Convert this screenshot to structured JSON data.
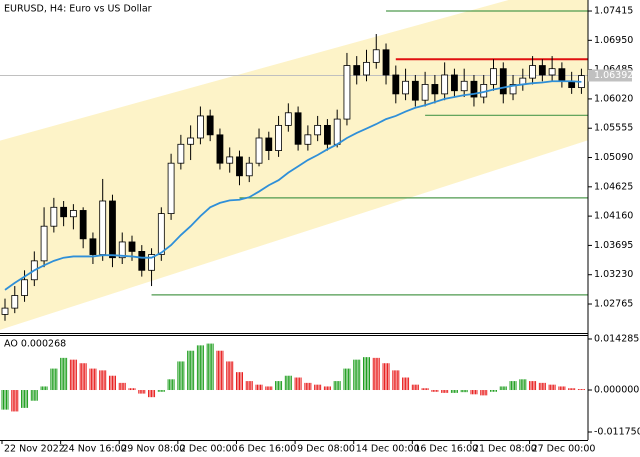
{
  "chart_data": [
    {
      "type": "candlestick",
      "title": "EURUSD, H4:  Euro vs US Dollar",
      "ohlc": [
        [
          1.026,
          1.0285,
          1.025,
          1.027
        ],
        [
          1.027,
          1.0305,
          1.0262,
          1.029
        ],
        [
          1.029,
          1.033,
          1.028,
          1.0315
        ],
        [
          1.0315,
          1.036,
          1.0305,
          1.0345
        ],
        [
          1.0345,
          1.043,
          1.0335,
          1.04
        ],
        [
          1.04,
          1.0445,
          1.039,
          1.043
        ],
        [
          1.043,
          1.044,
          1.04,
          1.0415
        ],
        [
          1.0415,
          1.0435,
          1.0395,
          1.0425
        ],
        [
          1.0425,
          1.043,
          1.0365,
          1.038
        ],
        [
          1.038,
          1.039,
          1.034,
          1.0355
        ],
        [
          1.0355,
          1.0475,
          1.0345,
          1.044
        ],
        [
          1.044,
          1.045,
          1.0335,
          1.035
        ],
        [
          1.035,
          1.039,
          1.034,
          1.0375
        ],
        [
          1.0375,
          1.0385,
          1.0345,
          1.036
        ],
        [
          1.036,
          1.037,
          1.032,
          1.033
        ],
        [
          1.033,
          1.0365,
          1.0305,
          1.0355
        ],
        [
          1.0355,
          1.043,
          1.0345,
          1.042
        ],
        [
          1.042,
          1.0515,
          1.041,
          1.05
        ],
        [
          1.05,
          1.0545,
          1.049,
          1.053
        ],
        [
          1.053,
          1.056,
          1.0505,
          1.054
        ],
        [
          1.054,
          1.059,
          1.053,
          1.0575
        ],
        [
          1.0575,
          1.0585,
          1.0535,
          1.0545
        ],
        [
          1.0545,
          1.0555,
          1.049,
          1.05
        ],
        [
          1.05,
          1.0525,
          1.0485,
          1.051
        ],
        [
          1.051,
          1.052,
          1.0465,
          1.048
        ],
        [
          1.048,
          1.051,
          1.047,
          1.05
        ],
        [
          1.05,
          1.0555,
          1.0495,
          1.054
        ],
        [
          1.054,
          1.055,
          1.0505,
          1.052
        ],
        [
          1.052,
          1.0575,
          1.051,
          1.056
        ],
        [
          1.056,
          1.0595,
          1.055,
          1.058
        ],
        [
          1.058,
          1.059,
          1.052,
          1.053
        ],
        [
          1.053,
          1.056,
          1.052,
          1.0545
        ],
        [
          1.0545,
          1.0575,
          1.0535,
          1.056
        ],
        [
          1.056,
          1.057,
          1.052,
          1.053
        ],
        [
          1.053,
          1.0585,
          1.0525,
          1.057
        ],
        [
          1.057,
          1.0675,
          1.056,
          1.0655
        ],
        [
          1.0655,
          1.067,
          1.0625,
          1.064
        ],
        [
          1.064,
          1.068,
          1.063,
          1.066
        ],
        [
          1.066,
          1.0705,
          1.065,
          1.068
        ],
        [
          1.068,
          1.069,
          1.0625,
          1.064
        ],
        [
          1.064,
          1.0655,
          1.0595,
          1.061
        ],
        [
          1.061,
          1.065,
          1.06,
          1.063
        ],
        [
          1.063,
          1.064,
          1.059,
          1.06
        ],
        [
          1.06,
          1.0645,
          1.059,
          1.0625
        ],
        [
          1.0625,
          1.064,
          1.0595,
          1.061
        ],
        [
          1.061,
          1.066,
          1.06,
          1.064
        ],
        [
          1.064,
          1.065,
          1.0605,
          1.0615
        ],
        [
          1.0615,
          1.065,
          1.0605,
          1.063
        ],
        [
          1.063,
          1.064,
          1.059,
          1.0605
        ],
        [
          1.0605,
          1.064,
          1.0595,
          1.0625
        ],
        [
          1.0625,
          1.0665,
          1.0615,
          1.065
        ],
        [
          1.065,
          1.066,
          1.0595,
          1.061
        ],
        [
          1.061,
          1.064,
          1.06,
          1.0625
        ],
        [
          1.0625,
          1.065,
          1.0615,
          1.0635
        ],
        [
          1.0635,
          1.067,
          1.0625,
          1.0655
        ],
        [
          1.0655,
          1.0665,
          1.063,
          1.064
        ],
        [
          1.064,
          1.067,
          1.063,
          1.065
        ],
        [
          1.065,
          1.066,
          1.062,
          1.063
        ],
        [
          1.063,
          1.0645,
          1.061,
          1.062
        ],
        [
          1.062,
          1.065,
          1.061,
          1.0639
        ]
      ],
      "ma": {
        "color": "#2f8fd8",
        "values": [
          1.0299,
          1.031,
          1.032,
          1.033,
          1.0338,
          1.0345,
          1.035,
          1.0352,
          1.0352,
          1.0352,
          1.0354,
          1.0354,
          1.0353,
          1.0352,
          1.035,
          1.035,
          1.0358,
          1.037,
          1.0386,
          1.04,
          1.0416,
          1.043,
          1.0437,
          1.0441,
          1.0442,
          1.0446,
          1.0455,
          1.0465,
          1.0473,
          1.0485,
          1.0495,
          1.0505,
          1.0513,
          1.0522,
          1.053,
          1.054,
          1.0548,
          1.0555,
          1.0562,
          1.057,
          1.0575,
          1.0582,
          1.0588,
          1.0592,
          1.0597,
          1.0602,
          1.0605,
          1.0608,
          1.061,
          1.0613,
          1.0617,
          1.062,
          1.0623,
          1.0625,
          1.0627,
          1.0628,
          1.063,
          1.063,
          1.063,
          1.0629
        ]
      },
      "channel": {
        "color": "#fdf3c8",
        "upper": [
          1.0538,
          1.0791
        ],
        "lower": [
          1.0238,
          1.0533
        ]
      },
      "levels": [
        {
          "price": 1.07415,
          "start": 39,
          "color": "#4f9a4f"
        },
        {
          "price": 1.0665,
          "start": 40,
          "color": "#e01010"
        },
        {
          "price": 1.0576,
          "start": 43,
          "color": "#4f9a4f"
        },
        {
          "price": 1.0445,
          "start": 24,
          "color": "#4f9a4f"
        },
        {
          "price": 1.0291,
          "start": 15,
          "color": "#4f9a4f"
        }
      ],
      "last_price": 1.06392,
      "ylim": [
        1.02305,
        1.0759
      ],
      "yticks": [
        1.07415,
        {
          "value": 1.0695,
          "label": "1.06950"
        },
        1.06485,
        {
          "value": 1.0602,
          "label": "1.06020"
        },
        1.05555,
        {
          "value": 1.0509,
          "label": "1.05090"
        },
        1.04625,
        {
          "value": 1.0416,
          "label": "1.04160"
        },
        1.03695,
        {
          "value": 1.0323,
          "label": "1.03230"
        },
        1.02765
      ],
      "xticks": [
        {
          "value": 0,
          "label": "22 Nov 2022"
        },
        {
          "value": 6,
          "label": "24 Nov 16:00"
        },
        {
          "value": 12,
          "label": "29 Nov 08:00"
        },
        {
          "value": 18,
          "label": "2 Dec 00:00"
        },
        {
          "value": 24,
          "label": "6 Dec 16:00"
        },
        {
          "value": 30,
          "label": "9 Dec 08:00"
        },
        {
          "value": 36,
          "label": "14 Dec 00:00"
        },
        {
          "value": 42,
          "label": "16 Dec 16:00"
        },
        {
          "value": 48,
          "label": "21 Dec 08:00"
        },
        {
          "value": 54,
          "label": "27 Dec 00:00"
        }
      ]
    },
    {
      "type": "bar",
      "label": "AO 0.000268",
      "up_color": "#1e9e1e",
      "down_color": "#e81c1c",
      "values": [
        -0.0055,
        -0.006,
        -0.005,
        -0.003,
        0.001,
        0.006,
        0.009,
        0.0085,
        0.0075,
        0.006,
        0.0055,
        0.004,
        0.002,
        0.0005,
        -0.001,
        -0.002,
        -0.0005,
        0.003,
        0.008,
        0.011,
        0.0125,
        0.013,
        0.011,
        0.008,
        0.005,
        0.0025,
        0.0015,
        0.001,
        0.0025,
        0.004,
        0.0035,
        0.002,
        0.0015,
        0.001,
        0.0025,
        0.006,
        0.0085,
        0.0092,
        0.009,
        0.0075,
        0.0055,
        0.0035,
        0.0015,
        0.0005,
        -0.0005,
        -0.0008,
        -0.0008,
        -0.0006,
        -0.0012,
        -0.0015,
        -0.0005,
        0.001,
        0.0025,
        0.003,
        0.0025,
        0.002,
        0.0015,
        0.001,
        0.0005,
        0.000268
      ],
      "ylim": [
        -0.01399,
        0.0154
      ],
      "yticks": [
        0.014285,
        {
          "value": 0,
          "label": "0.000000"
        },
        {
          "value": -0.01175,
          "label": "-0.011750"
        }
      ]
    }
  ]
}
